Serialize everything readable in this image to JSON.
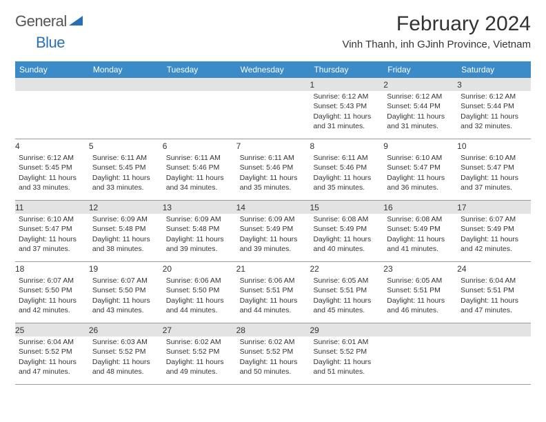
{
  "logo": {
    "general": "General",
    "blue": "Blue"
  },
  "title": "February 2024",
  "location": "Vinh Thanh, inh GJinh Province, Vietnam",
  "colors": {
    "header_bg": "#3b8bc9",
    "header_fg": "#ffffff",
    "shaded_bg": "#e3e3e3",
    "text": "#333333",
    "logo_gray": "#555555",
    "logo_blue": "#2a6fb5",
    "border": "#999999",
    "page_bg": "#ffffff"
  },
  "fonts": {
    "title_size": 30,
    "location_size": 15,
    "weekday_size": 12,
    "daynum_size": 12,
    "info_size": 10.5
  },
  "weekdays": [
    "Sunday",
    "Monday",
    "Tuesday",
    "Wednesday",
    "Thursday",
    "Friday",
    "Saturday"
  ],
  "weeks": [
    [
      {
        "num": "",
        "info": ""
      },
      {
        "num": "",
        "info": ""
      },
      {
        "num": "",
        "info": ""
      },
      {
        "num": "",
        "info": ""
      },
      {
        "num": "1",
        "info": "Sunrise: 6:12 AM\nSunset: 5:43 PM\nDaylight: 11 hours and 31 minutes."
      },
      {
        "num": "2",
        "info": "Sunrise: 6:12 AM\nSunset: 5:44 PM\nDaylight: 11 hours and 31 minutes."
      },
      {
        "num": "3",
        "info": "Sunrise: 6:12 AM\nSunset: 5:44 PM\nDaylight: 11 hours and 32 minutes."
      }
    ],
    [
      {
        "num": "4",
        "info": "Sunrise: 6:12 AM\nSunset: 5:45 PM\nDaylight: 11 hours and 33 minutes."
      },
      {
        "num": "5",
        "info": "Sunrise: 6:11 AM\nSunset: 5:45 PM\nDaylight: 11 hours and 33 minutes."
      },
      {
        "num": "6",
        "info": "Sunrise: 6:11 AM\nSunset: 5:46 PM\nDaylight: 11 hours and 34 minutes."
      },
      {
        "num": "7",
        "info": "Sunrise: 6:11 AM\nSunset: 5:46 PM\nDaylight: 11 hours and 35 minutes."
      },
      {
        "num": "8",
        "info": "Sunrise: 6:11 AM\nSunset: 5:46 PM\nDaylight: 11 hours and 35 minutes."
      },
      {
        "num": "9",
        "info": "Sunrise: 6:10 AM\nSunset: 5:47 PM\nDaylight: 11 hours and 36 minutes."
      },
      {
        "num": "10",
        "info": "Sunrise: 6:10 AM\nSunset: 5:47 PM\nDaylight: 11 hours and 37 minutes."
      }
    ],
    [
      {
        "num": "11",
        "info": "Sunrise: 6:10 AM\nSunset: 5:47 PM\nDaylight: 11 hours and 37 minutes."
      },
      {
        "num": "12",
        "info": "Sunrise: 6:09 AM\nSunset: 5:48 PM\nDaylight: 11 hours and 38 minutes."
      },
      {
        "num": "13",
        "info": "Sunrise: 6:09 AM\nSunset: 5:48 PM\nDaylight: 11 hours and 39 minutes."
      },
      {
        "num": "14",
        "info": "Sunrise: 6:09 AM\nSunset: 5:49 PM\nDaylight: 11 hours and 39 minutes."
      },
      {
        "num": "15",
        "info": "Sunrise: 6:08 AM\nSunset: 5:49 PM\nDaylight: 11 hours and 40 minutes."
      },
      {
        "num": "16",
        "info": "Sunrise: 6:08 AM\nSunset: 5:49 PM\nDaylight: 11 hours and 41 minutes."
      },
      {
        "num": "17",
        "info": "Sunrise: 6:07 AM\nSunset: 5:49 PM\nDaylight: 11 hours and 42 minutes."
      }
    ],
    [
      {
        "num": "18",
        "info": "Sunrise: 6:07 AM\nSunset: 5:50 PM\nDaylight: 11 hours and 42 minutes."
      },
      {
        "num": "19",
        "info": "Sunrise: 6:07 AM\nSunset: 5:50 PM\nDaylight: 11 hours and 43 minutes."
      },
      {
        "num": "20",
        "info": "Sunrise: 6:06 AM\nSunset: 5:50 PM\nDaylight: 11 hours and 44 minutes."
      },
      {
        "num": "21",
        "info": "Sunrise: 6:06 AM\nSunset: 5:51 PM\nDaylight: 11 hours and 44 minutes."
      },
      {
        "num": "22",
        "info": "Sunrise: 6:05 AM\nSunset: 5:51 PM\nDaylight: 11 hours and 45 minutes."
      },
      {
        "num": "23",
        "info": "Sunrise: 6:05 AM\nSunset: 5:51 PM\nDaylight: 11 hours and 46 minutes."
      },
      {
        "num": "24",
        "info": "Sunrise: 6:04 AM\nSunset: 5:51 PM\nDaylight: 11 hours and 47 minutes."
      }
    ],
    [
      {
        "num": "25",
        "info": "Sunrise: 6:04 AM\nSunset: 5:52 PM\nDaylight: 11 hours and 47 minutes."
      },
      {
        "num": "26",
        "info": "Sunrise: 6:03 AM\nSunset: 5:52 PM\nDaylight: 11 hours and 48 minutes."
      },
      {
        "num": "27",
        "info": "Sunrise: 6:02 AM\nSunset: 5:52 PM\nDaylight: 11 hours and 49 minutes."
      },
      {
        "num": "28",
        "info": "Sunrise: 6:02 AM\nSunset: 5:52 PM\nDaylight: 11 hours and 50 minutes."
      },
      {
        "num": "29",
        "info": "Sunrise: 6:01 AM\nSunset: 5:52 PM\nDaylight: 11 hours and 51 minutes."
      },
      {
        "num": "",
        "info": ""
      },
      {
        "num": "",
        "info": ""
      }
    ]
  ]
}
